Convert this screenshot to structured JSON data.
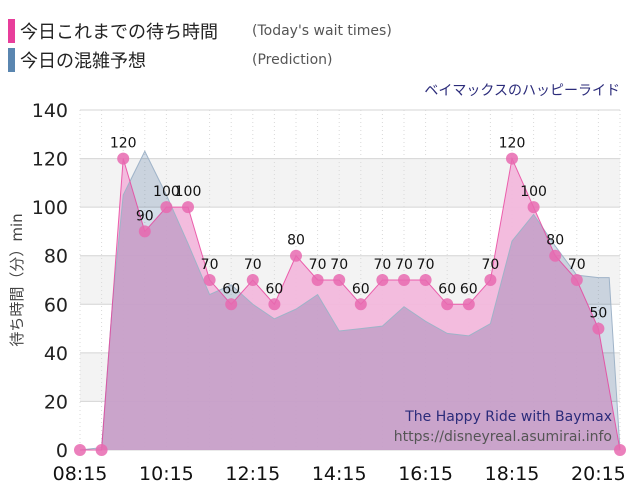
{
  "legend": [
    {
      "label": "今日これまでの待ち時間",
      "sublabel": "(Today's wait times)",
      "color": "#e83e9b"
    },
    {
      "label": "今日の混雑予想",
      "sublabel": "(Prediction)",
      "color": "#5a86b0"
    }
  ],
  "attraction": "ベイマックスのハッピーライド",
  "watermark": {
    "line1": "The Happy Ride with Baymax",
    "line2": "https://disneyreal.asumirai.info"
  },
  "colors": {
    "today_fill": "#f2b8dc",
    "today_line": "#e83e9b",
    "today_marker": "#e86ab0",
    "prediction_fill": "#c6d3e2",
    "prediction_line": "#9fb3c8",
    "overlap": "#c9a2cc",
    "attraction_text": "#2b2b7a",
    "watermark_title": "#2b2b7a",
    "watermark_url": "#555555"
  },
  "chart_data": {
    "type": "area",
    "ylabel": "待ち時間（分）min",
    "ylim": [
      0,
      140
    ],
    "yticks": [
      0,
      20,
      40,
      60,
      80,
      100,
      120,
      140
    ],
    "xticks": [
      "08:15",
      "10:15",
      "12:15",
      "14:15",
      "16:15",
      "18:15",
      "20:15"
    ],
    "grid": true,
    "series": [
      {
        "name": "今日これまでの待ち時間",
        "labeled": true,
        "points": [
          [
            "08:15",
            0
          ],
          [
            "08:45",
            0
          ],
          [
            "09:15",
            120
          ],
          [
            "09:45",
            90
          ],
          [
            "10:15",
            100
          ],
          [
            "10:45",
            100
          ],
          [
            "11:15",
            70
          ],
          [
            "11:45",
            60
          ],
          [
            "12:15",
            70
          ],
          [
            "12:45",
            60
          ],
          [
            "13:15",
            80
          ],
          [
            "13:45",
            70
          ],
          [
            "14:15",
            70
          ],
          [
            "14:45",
            60
          ],
          [
            "15:15",
            70
          ],
          [
            "15:45",
            70
          ],
          [
            "16:15",
            70
          ],
          [
            "16:45",
            60
          ],
          [
            "17:15",
            60
          ],
          [
            "17:45",
            70
          ],
          [
            "18:15",
            120
          ],
          [
            "18:45",
            100
          ],
          [
            "19:15",
            80
          ],
          [
            "19:45",
            70
          ],
          [
            "20:15",
            50
          ],
          [
            "20:45",
            0
          ]
        ]
      },
      {
        "name": "今日の混雑予想",
        "labeled": false,
        "points": [
          [
            "08:15",
            0
          ],
          [
            "08:45",
            1
          ],
          [
            "09:00",
            60
          ],
          [
            "09:15",
            105
          ],
          [
            "09:45",
            123
          ],
          [
            "10:15",
            105
          ],
          [
            "10:45",
            85
          ],
          [
            "11:15",
            64
          ],
          [
            "11:45",
            68
          ],
          [
            "12:15",
            60
          ],
          [
            "12:45",
            54
          ],
          [
            "13:15",
            58
          ],
          [
            "13:45",
            64
          ],
          [
            "14:15",
            49
          ],
          [
            "14:45",
            50
          ],
          [
            "15:15",
            51
          ],
          [
            "15:45",
            59
          ],
          [
            "16:15",
            53
          ],
          [
            "16:45",
            48
          ],
          [
            "17:15",
            47
          ],
          [
            "17:45",
            52
          ],
          [
            "18:15",
            86
          ],
          [
            "18:45",
            97
          ],
          [
            "19:15",
            84
          ],
          [
            "19:45",
            72
          ],
          [
            "20:15",
            71
          ],
          [
            "20:30",
            71
          ],
          [
            "20:45",
            0
          ]
        ]
      }
    ]
  }
}
